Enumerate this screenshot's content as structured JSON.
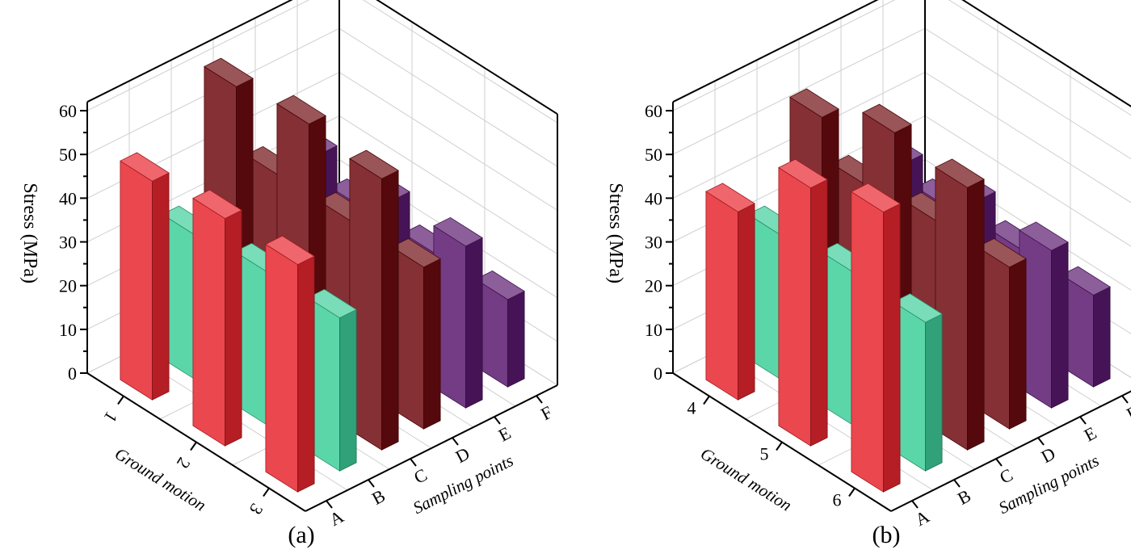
{
  "chart_data": [
    {
      "type": "bar3d",
      "caption": "(a)",
      "ylabel": "Stress (MPa)",
      "xlabel": "Ground motion",
      "zlabel": "Sampling points",
      "ground_motions": [
        "1",
        "2",
        "3"
      ],
      "sampling_points": [
        "A",
        "B",
        "C",
        "D",
        "E",
        "F"
      ],
      "ylim": [
        0,
        65
      ],
      "yticks": [
        0,
        10,
        20,
        30,
        40,
        50,
        60
      ],
      "values": [
        [
          50,
          33,
          62,
          37,
          37,
          20
        ],
        [
          52,
          35,
          64,
          37,
          37,
          20
        ],
        [
          52,
          35,
          62,
          37,
          37,
          20
        ]
      ]
    },
    {
      "type": "bar3d",
      "caption": "(b)",
      "ylabel": "Stress (MPa)",
      "xlabel": "Ground motion",
      "zlabel": "Sampling points",
      "ground_motions": [
        "4",
        "5",
        "6"
      ],
      "sampling_points": [
        "A",
        "B",
        "C",
        "D",
        "E",
        "F"
      ],
      "ylim": [
        0,
        65
      ],
      "yticks": [
        0,
        10,
        20,
        30,
        40,
        50,
        60
      ],
      "values": [
        [
          43,
          33,
          55,
          35,
          35,
          20
        ],
        [
          59,
          35,
          62,
          37,
          37,
          21
        ],
        [
          64,
          34,
          60,
          37,
          36,
          21
        ]
      ]
    }
  ],
  "colors": {
    "A": "#e8262f",
    "B": "#3ecf9a",
    "C": "#6e0c10",
    "D": "#5a1a6e"
  }
}
